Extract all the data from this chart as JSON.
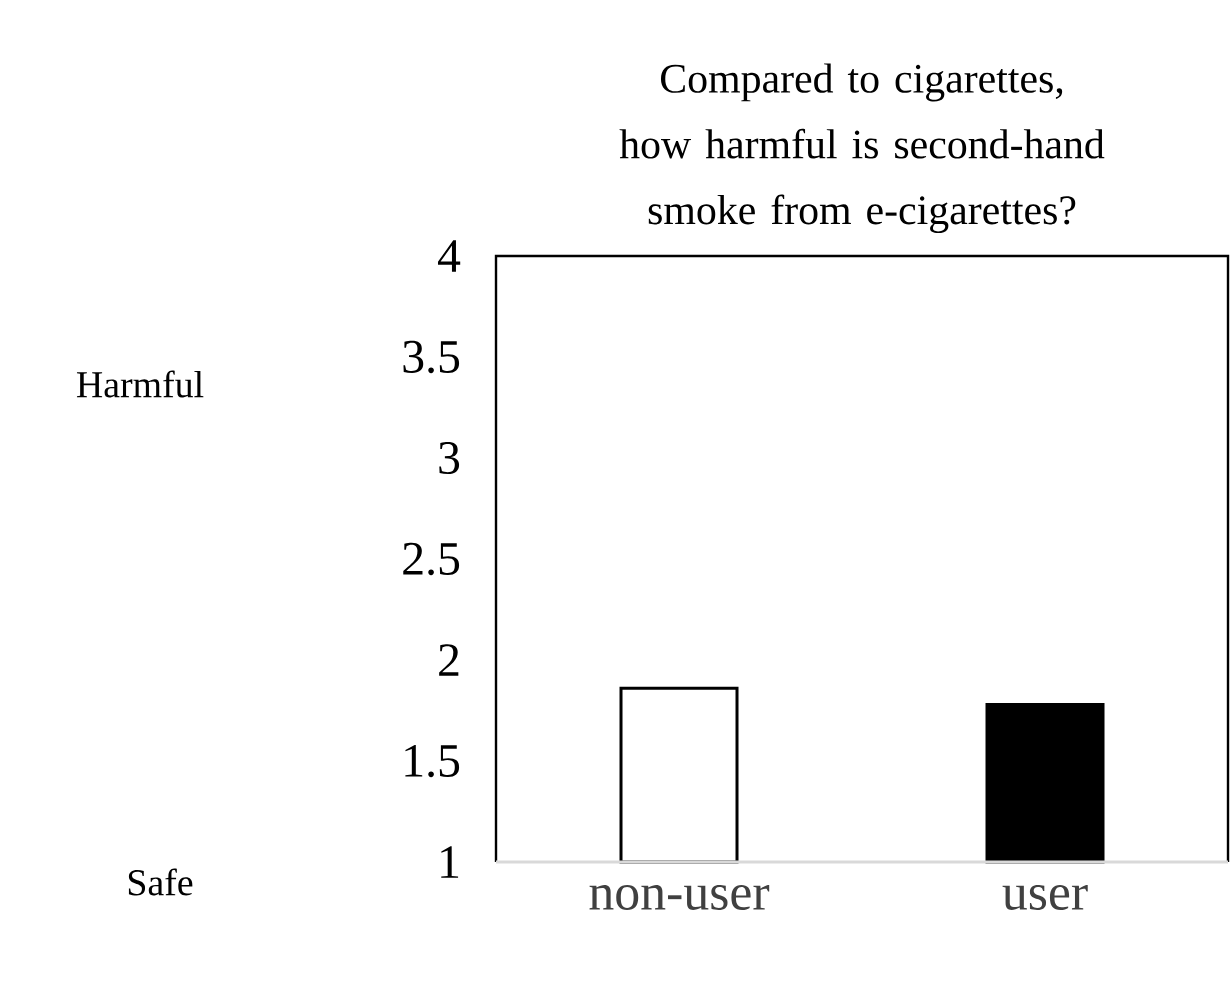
{
  "chart_data": {
    "type": "bar",
    "title": "Compared to cigarettes, how harmful is second-hand smoke from e-cigarettes?",
    "categories": [
      "non-user",
      "user"
    ],
    "values": [
      1.86,
      1.78
    ],
    "colors": [
      "#ffffff",
      "#000000"
    ],
    "ylim": [
      1,
      4
    ],
    "yticks": [
      1,
      1.5,
      2,
      2.5,
      3,
      3.5,
      4
    ],
    "annotations": [
      "Harmful",
      "Safe"
    ],
    "grid": false
  }
}
